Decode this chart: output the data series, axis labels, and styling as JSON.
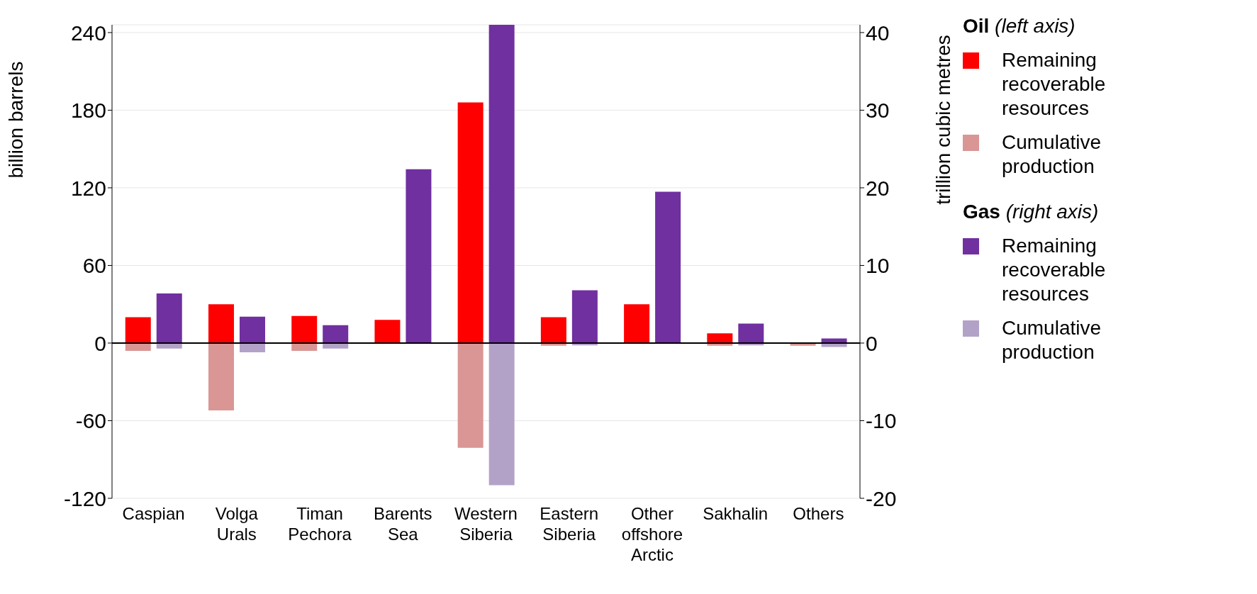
{
  "chart_data": {
    "type": "bar",
    "ylabel": "billion barrels",
    "y2label": "trillion cubic metres",
    "categories": [
      "Caspian",
      "Volga Urals",
      "Timan Pechora",
      "Barents Sea",
      "Western Siberia",
      "Eastern Siberia",
      "Other offshore Arctic",
      "Sakhalin",
      "Others"
    ],
    "stacked": true,
    "series": [
      {
        "name": "Remaining recoverable resources",
        "color": "#ff0000",
        "values": [
          20,
          30,
          21,
          18,
          186,
          20,
          30,
          7.5,
          0
        ]
      },
      {
        "name": "Cumulative production",
        "color": "#d99694",
        "values": [
          -6,
          -52,
          -6,
          0,
          -81,
          -2,
          0,
          -2,
          -2
        ]
      },
      {
        "name": "Remaining recoverable resources",
        "color": "#7030a0",
        "axis": "y2",
        "values": [
          6.4,
          3.4,
          2.3,
          22.4,
          41,
          6.8,
          19.5,
          2.5,
          0.6
        ]
      },
      {
        "name": "Cumulative production",
        "color": "#b3a2c7",
        "axis": "y2",
        "values": [
          -0.7,
          -1.2,
          -0.7,
          0,
          -18.3,
          -0.3,
          0,
          -0.3,
          -0.5
        ]
      }
    ],
    "ylim": [
      -120,
      246
    ],
    "yticks": [
      -120,
      -60,
      0,
      60,
      120,
      180,
      240
    ],
    "y2lim": [
      -20,
      41
    ],
    "y2ticks": [
      -20,
      -10,
      0,
      10,
      20,
      30,
      40
    ],
    "ref_lines": [
      {
        "axis": "y",
        "value": 0,
        "color": "#000000"
      }
    ],
    "annotations": [
      "Oil (left axis)",
      "Gas (right axis)"
    ],
    "grid": "y",
    "legend": "right"
  }
}
